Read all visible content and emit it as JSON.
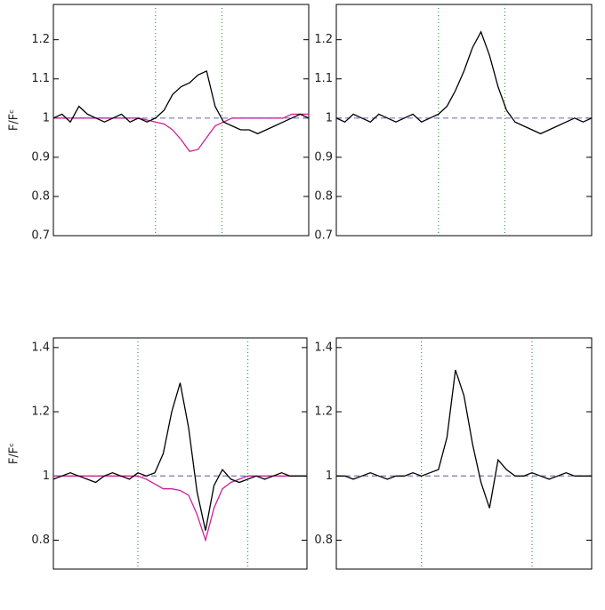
{
  "chart_data": [
    {
      "type": "line",
      "ylabel": "F/Fᶜ",
      "xlim": [
        -1500,
        1500
      ],
      "ylim": [
        0.7,
        1.29
      ],
      "yticks": [
        0.7,
        0.8,
        0.9,
        1.0,
        1.1,
        1.2
      ],
      "hline": 1.0,
      "vlines": [
        -300,
        480
      ],
      "x": [
        -1500,
        -1400,
        -1300,
        -1200,
        -1100,
        -1000,
        -900,
        -800,
        -700,
        -600,
        -500,
        -400,
        -300,
        -200,
        -100,
        0,
        100,
        200,
        300,
        400,
        500,
        600,
        700,
        800,
        900,
        1000,
        1100,
        1200,
        1300,
        1400,
        1500
      ],
      "series": [
        {
          "color": "#cc2299",
          "values": [
            1.0,
            1.0,
            1.0,
            1.0,
            1.0,
            1.0,
            1.0,
            1.0,
            1.0,
            1.0,
            1.0,
            0.995,
            0.99,
            0.985,
            0.97,
            0.945,
            0.915,
            0.92,
            0.95,
            0.98,
            0.99,
            1.0,
            1.0,
            1.0,
            1.0,
            1.0,
            1.0,
            1.0,
            1.01,
            1.01,
            1.01
          ]
        },
        {
          "color": "#000000",
          "values": [
            1.0,
            1.01,
            0.99,
            1.03,
            1.01,
            1.0,
            0.99,
            1.0,
            1.01,
            0.99,
            1.0,
            0.99,
            1.0,
            1.02,
            1.06,
            1.08,
            1.09,
            1.11,
            1.12,
            1.03,
            0.99,
            0.98,
            0.97,
            0.97,
            0.96,
            0.97,
            0.98,
            0.99,
            1.0,
            1.01,
            1.0
          ]
        }
      ]
    },
    {
      "type": "line",
      "xlim": [
        -1500,
        1500
      ],
      "ylim": [
        0.7,
        1.29
      ],
      "yticks": [
        0.7,
        0.8,
        0.9,
        1.0,
        1.1,
        1.2
      ],
      "hline": 1.0,
      "vlines": [
        -300,
        480
      ],
      "x": [
        -1500,
        -1400,
        -1300,
        -1200,
        -1100,
        -1000,
        -900,
        -800,
        -700,
        -600,
        -500,
        -400,
        -300,
        -200,
        -100,
        0,
        100,
        200,
        300,
        400,
        500,
        600,
        700,
        800,
        900,
        1000,
        1100,
        1200,
        1300,
        1400,
        1500
      ],
      "series": [
        {
          "color": "#000000",
          "values": [
            1.0,
            0.99,
            1.01,
            1.0,
            0.99,
            1.01,
            1.0,
            0.99,
            1.0,
            1.01,
            0.99,
            1.0,
            1.01,
            1.03,
            1.07,
            1.12,
            1.18,
            1.22,
            1.16,
            1.08,
            1.02,
            0.99,
            0.98,
            0.97,
            0.96,
            0.97,
            0.98,
            0.99,
            1.0,
            0.99,
            1.0
          ]
        }
      ]
    },
    {
      "type": "line",
      "ylabel": "F/Fᶜ",
      "xlim": [
        -1500,
        1500
      ],
      "ylim": [
        0.71,
        1.43
      ],
      "yticks": [
        0.8,
        1.0,
        1.2,
        1.4
      ],
      "hline": 1.0,
      "vlines": [
        -500,
        800
      ],
      "x": [
        -1500,
        -1400,
        -1300,
        -1200,
        -1100,
        -1000,
        -900,
        -800,
        -700,
        -600,
        -500,
        -400,
        -300,
        -200,
        -100,
        0,
        100,
        200,
        300,
        400,
        500,
        600,
        700,
        800,
        900,
        1000,
        1100,
        1200,
        1300,
        1400,
        1500
      ],
      "series": [
        {
          "color": "#cc2299",
          "values": [
            1.0,
            1.0,
            1.0,
            1.0,
            1.0,
            1.0,
            1.0,
            1.0,
            1.0,
            1.0,
            1.0,
            0.99,
            0.975,
            0.96,
            0.96,
            0.955,
            0.94,
            0.88,
            0.8,
            0.9,
            0.96,
            0.98,
            0.99,
            1.0,
            1.0,
            1.0,
            1.0,
            1.0,
            1.0,
            1.0,
            1.0
          ]
        },
        {
          "color": "#000000",
          "values": [
            0.99,
            1.0,
            1.01,
            1.0,
            0.99,
            0.98,
            1.0,
            1.01,
            1.0,
            0.99,
            1.01,
            1.0,
            1.01,
            1.07,
            1.2,
            1.29,
            1.15,
            0.95,
            0.83,
            0.97,
            1.02,
            0.99,
            0.98,
            0.99,
            1.0,
            0.99,
            1.0,
            1.01,
            1.0,
            1.0,
            1.0
          ]
        }
      ]
    },
    {
      "type": "line",
      "xlim": [
        -1500,
        1500
      ],
      "ylim": [
        0.71,
        1.43
      ],
      "yticks": [
        0.8,
        1.0,
        1.2,
        1.4
      ],
      "hline": 1.0,
      "vlines": [
        -500,
        800
      ],
      "x": [
        -1500,
        -1400,
        -1300,
        -1200,
        -1100,
        -1000,
        -900,
        -800,
        -700,
        -600,
        -500,
        -400,
        -300,
        -200,
        -100,
        0,
        100,
        200,
        300,
        400,
        500,
        600,
        700,
        800,
        900,
        1000,
        1100,
        1200,
        1300,
        1400,
        1500
      ],
      "series": [
        {
          "color": "#000000",
          "values": [
            1.0,
            1.0,
            0.99,
            1.0,
            1.01,
            1.0,
            0.99,
            1.0,
            1.0,
            1.01,
            1.0,
            1.01,
            1.02,
            1.12,
            1.33,
            1.25,
            1.1,
            0.98,
            0.9,
            1.05,
            1.02,
            1.0,
            1.0,
            1.01,
            1.0,
            0.99,
            1.0,
            1.01,
            1.0,
            1.0,
            1.0
          ]
        }
      ]
    }
  ]
}
